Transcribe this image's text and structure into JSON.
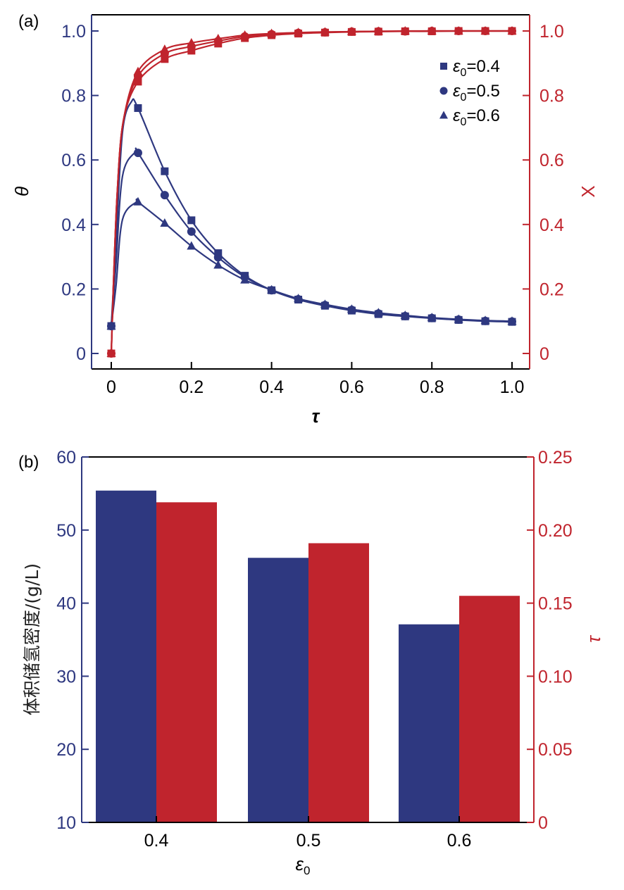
{
  "colors": {
    "blue": "#2e3880",
    "red": "#c0242d",
    "black": "#000000"
  },
  "chart_data": [
    {
      "panel": "(a)",
      "type": "line",
      "xlabel": "τ",
      "ylabel": "θ",
      "y2label": "X",
      "xlim": [
        -0.05,
        1.05
      ],
      "ylim": [
        -0.05,
        1.05
      ],
      "y2lim": [
        -0.05,
        1.05
      ],
      "xticks": [
        0,
        0.2,
        0.4,
        0.6,
        0.8,
        1.0
      ],
      "xticklabels": [
        "0",
        "0.2",
        "0.4",
        "0.6",
        "0.8",
        "1.0"
      ],
      "yticks": [
        0,
        0.2,
        0.4,
        0.6,
        0.8,
        1.0
      ],
      "yticklabels": [
        "0",
        "0.2",
        "0.4",
        "0.6",
        "0.8",
        "1.0"
      ],
      "y2ticks": [
        0,
        0.2,
        0.4,
        0.6,
        0.8,
        1.0
      ],
      "y2ticklabels": [
        "0",
        "0.2",
        "0.4",
        "0.6",
        "0.8",
        "1.0"
      ],
      "grid": false,
      "legend_position": "top-right",
      "legend": [
        {
          "marker": "square",
          "label_symbol": "ε",
          "label_sub": "0",
          "label_rest": "=0.4"
        },
        {
          "marker": "circle",
          "label_symbol": "ε",
          "label_sub": "0",
          "label_rest": "=0.5"
        },
        {
          "marker": "triangle",
          "label_symbol": "ε",
          "label_sub": "0",
          "label_rest": "=0.6"
        }
      ],
      "x": [
        0,
        0.0667,
        0.1333,
        0.2,
        0.2667,
        0.3333,
        0.4,
        0.4667,
        0.5333,
        0.6,
        0.6667,
        0.7333,
        0.8,
        0.8667,
        0.9333,
        1.0
      ],
      "series": [
        {
          "name": "θ, ε0=0.4",
          "axis": "left",
          "color": "blue",
          "marker": "square",
          "peak": {
            "x": 0.05,
            "y": 0.78
          },
          "values": [
            0.085,
            0.761,
            0.565,
            0.413,
            0.311,
            0.241,
            0.196,
            0.167,
            0.148,
            0.133,
            0.122,
            0.115,
            0.109,
            0.104,
            0.1,
            0.098
          ]
        },
        {
          "name": "θ, ε0=0.5",
          "axis": "left",
          "color": "blue",
          "marker": "circle",
          "peak": {
            "x": 0.06,
            "y": 0.625
          },
          "values": [
            0.085,
            0.622,
            0.491,
            0.378,
            0.298,
            0.237,
            0.196,
            0.168,
            0.15,
            0.135,
            0.124,
            0.116,
            0.11,
            0.105,
            0.101,
            0.099
          ]
        },
        {
          "name": "θ, ε0=0.6",
          "axis": "left",
          "color": "blue",
          "marker": "triangle",
          "peak": {
            "x": 0.065,
            "y": 0.472
          },
          "values": [
            0.085,
            0.47,
            0.404,
            0.333,
            0.274,
            0.228,
            0.197,
            0.17,
            0.152,
            0.137,
            0.126,
            0.118,
            0.111,
            0.106,
            0.102,
            0.1
          ]
        },
        {
          "name": "X, ε0=0.4",
          "axis": "right",
          "color": "red",
          "marker": "square",
          "values": [
            0,
            0.843,
            0.913,
            0.939,
            0.961,
            0.978,
            0.987,
            0.992,
            0.995,
            0.997,
            0.998,
            0.999,
            0.999,
            1.0,
            1.0,
            1.0
          ]
        },
        {
          "name": "X, ε0=0.5",
          "axis": "right",
          "color": "red",
          "marker": "circle",
          "values": [
            0,
            0.86,
            0.93,
            0.952,
            0.969,
            0.983,
            0.99,
            0.994,
            0.996,
            0.998,
            0.999,
            0.999,
            1.0,
            1.0,
            1.0,
            1.0
          ]
        },
        {
          "name": "X, ε0=0.6",
          "axis": "right",
          "color": "red",
          "marker": "triangle",
          "values": [
            0,
            0.874,
            0.943,
            0.963,
            0.976,
            0.987,
            0.992,
            0.995,
            0.997,
            0.998,
            0.999,
            1.0,
            1.0,
            1.0,
            1.0,
            1.0
          ]
        }
      ]
    },
    {
      "panel": "(b)",
      "type": "bar",
      "categories": [
        "0.4",
        "0.5",
        "0.6"
      ],
      "xlabel_symbol": "ε",
      "xlabel_sub": "0",
      "ylabel": "体积储氢密度/(g/L)",
      "y2label": "τ",
      "ylim": [
        10,
        60
      ],
      "y2lim": [
        0,
        0.25
      ],
      "yticks": [
        10,
        20,
        30,
        40,
        50,
        60
      ],
      "yticklabels": [
        "10",
        "20",
        "30",
        "40",
        "50",
        "60"
      ],
      "y2ticks": [
        0,
        0.05,
        0.1,
        0.15,
        0.2,
        0.25
      ],
      "y2ticklabels": [
        "0",
        "0.05",
        "0.10",
        "0.15",
        "0.20",
        "0.25"
      ],
      "grid": false,
      "series": [
        {
          "name": "体积储氢密度",
          "axis": "left",
          "color": "blue",
          "values": [
            55.4,
            46.2,
            37.1
          ]
        },
        {
          "name": "τ",
          "axis": "right",
          "color": "red",
          "values": [
            0.219,
            0.191,
            0.155
          ]
        }
      ]
    }
  ]
}
